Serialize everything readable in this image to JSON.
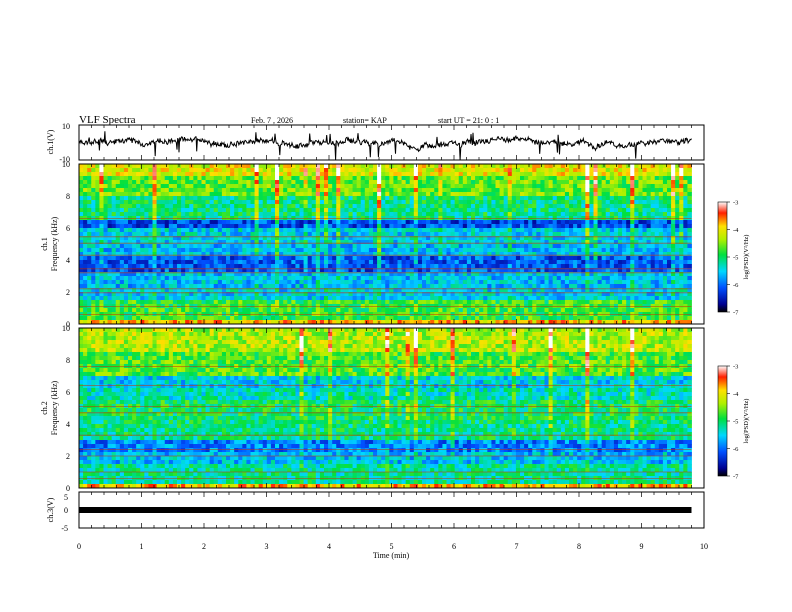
{
  "header": {
    "title": "VLF Spectra",
    "date": "Feb. 7 , 2026",
    "station": "station= KAP",
    "start_ut": "start  UT =  21: 0  : 1"
  },
  "chart_data": [
    {
      "type": "line",
      "id": "ch1-waveform",
      "ylabel": "ch.1(V)",
      "ylim": [
        -10,
        10
      ],
      "y_ticks": [
        "10",
        "-10"
      ],
      "xlim": [
        0,
        10
      ],
      "baseline": 1.5,
      "amplitude": 2.5,
      "active_x_range": [
        0,
        9.8
      ]
    },
    {
      "type": "heatmap",
      "id": "ch1-spectrogram",
      "ylabel_line1": "ch.1",
      "ylabel_line2": "Frequency (kHz)",
      "ylim": [
        0,
        10
      ],
      "y_ticks": [
        "0",
        "2",
        "4",
        "6",
        "8",
        "10"
      ],
      "active_x_range": [
        0,
        9.8
      ],
      "colorbar": {
        "label": "log(PSD)(V²/Hz)",
        "range": [
          -7,
          -3
        ],
        "ticks": [
          "-3",
          "-4",
          "-5",
          "-6",
          "-7"
        ]
      },
      "bands": [
        {
          "f": [
            0.0,
            0.3
          ],
          "level": -3.8
        },
        {
          "f": [
            0.3,
            1.4
          ],
          "level": -4.8
        },
        {
          "f": [
            1.4,
            2.2
          ],
          "level": -5.5
        },
        {
          "f": [
            2.2,
            3.2
          ],
          "level": -5.6
        },
        {
          "f": [
            3.2,
            4.2
          ],
          "level": -6.1
        },
        {
          "f": [
            4.2,
            5.0
          ],
          "level": -5.6
        },
        {
          "f": [
            5.0,
            6.0
          ],
          "level": -5.5
        },
        {
          "f": [
            6.0,
            6.6
          ],
          "level": -6.2
        },
        {
          "f": [
            6.6,
            8.0
          ],
          "level": -5.1
        },
        {
          "f": [
            8.0,
            9.2
          ],
          "level": -4.6
        },
        {
          "f": [
            9.2,
            10.0
          ],
          "level": -4.1
        }
      ],
      "lines_khz": [
        0.6,
        1.1,
        1.95,
        2.2,
        3.2,
        3.45,
        4.3,
        5.05,
        5.45,
        6.6
      ]
    },
    {
      "type": "heatmap",
      "id": "ch2-spectrogram",
      "ylabel_line1": "ch.2",
      "ylabel_line2": "Frequency (kHz)",
      "ylim": [
        0,
        10
      ],
      "y_ticks": [
        "0",
        "2",
        "4",
        "6",
        "8",
        "10"
      ],
      "active_x_range": [
        0,
        9.8
      ],
      "colorbar": {
        "label": "log(PSD)(V²/Hz)",
        "range": [
          -7,
          -3
        ],
        "ticks": [
          "-3",
          "-4",
          "-5",
          "-6",
          "-7"
        ]
      },
      "bands": [
        {
          "f": [
            0.0,
            0.3
          ],
          "level": -3.8
        },
        {
          "f": [
            0.3,
            1.6
          ],
          "level": -5.2
        },
        {
          "f": [
            1.6,
            2.2
          ],
          "level": -5.6
        },
        {
          "f": [
            2.2,
            3.0
          ],
          "level": -5.9
        },
        {
          "f": [
            3.0,
            4.2
          ],
          "level": -5.1
        },
        {
          "f": [
            4.2,
            5.5
          ],
          "level": -5.0
        },
        {
          "f": [
            5.5,
            6.2
          ],
          "level": -5.3
        },
        {
          "f": [
            6.2,
            7.0
          ],
          "level": -5.5
        },
        {
          "f": [
            7.0,
            8.5
          ],
          "level": -4.7
        },
        {
          "f": [
            8.5,
            10.0
          ],
          "level": -4.3
        }
      ],
      "lines_khz": [
        0.6,
        1.0,
        2.0,
        2.4,
        3.3,
        4.7,
        5.1,
        6.4,
        7.6
      ]
    },
    {
      "type": "line",
      "id": "ch3-waveform",
      "ylabel": "ch.3(V)",
      "ylim": [
        -5,
        5
      ],
      "y_ticks": [
        "5",
        "0",
        "-5"
      ],
      "xlim": [
        0,
        10
      ],
      "value": 0,
      "active_x_range": [
        0,
        9.8
      ]
    }
  ],
  "x_axis": {
    "label": "Time (min)",
    "range": [
      0,
      10
    ],
    "ticks": [
      "0",
      "1",
      "2",
      "3",
      "4",
      "5",
      "6",
      "7",
      "8",
      "9",
      "10"
    ]
  }
}
